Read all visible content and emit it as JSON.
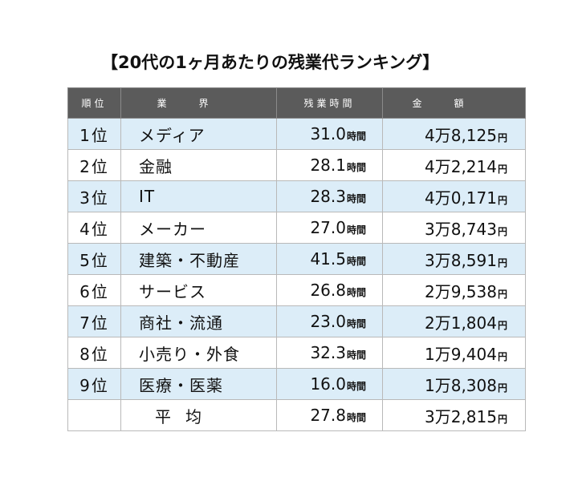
{
  "title": "【20代の1ヶ月あたりの残業代ランキング】",
  "headers": {
    "rank": "順位",
    "industry": "業界",
    "overtime": "残業時間",
    "amount": "金額"
  },
  "hour_unit": "時間",
  "yen_unit": "円",
  "rows": [
    {
      "rank": "1位",
      "industry": "メディア",
      "hours": "31.0",
      "amount": "4万8,125"
    },
    {
      "rank": "2位",
      "industry": "金融",
      "hours": "28.1",
      "amount": "4万2,214"
    },
    {
      "rank": "3位",
      "industry": "IT",
      "hours": "28.3",
      "amount": "4万0,171"
    },
    {
      "rank": "4位",
      "industry": "メーカー",
      "hours": "27.0",
      "amount": "3万8,743"
    },
    {
      "rank": "5位",
      "industry": "建築・不動産",
      "hours": "41.5",
      "amount": "3万8,591"
    },
    {
      "rank": "6位",
      "industry": "サービス",
      "hours": "26.8",
      "amount": "2万9,538"
    },
    {
      "rank": "7位",
      "industry": "商社・流通",
      "hours": "23.0",
      "amount": "2万1,804"
    },
    {
      "rank": "8位",
      "industry": "小売り・外食",
      "hours": "32.3",
      "amount": "1万9,404"
    },
    {
      "rank": "9位",
      "industry": "医療・医薬",
      "hours": "16.0",
      "amount": "1万8,308"
    }
  ],
  "average": {
    "label": "平均",
    "hours": "27.8",
    "amount": "3万2,815"
  }
}
